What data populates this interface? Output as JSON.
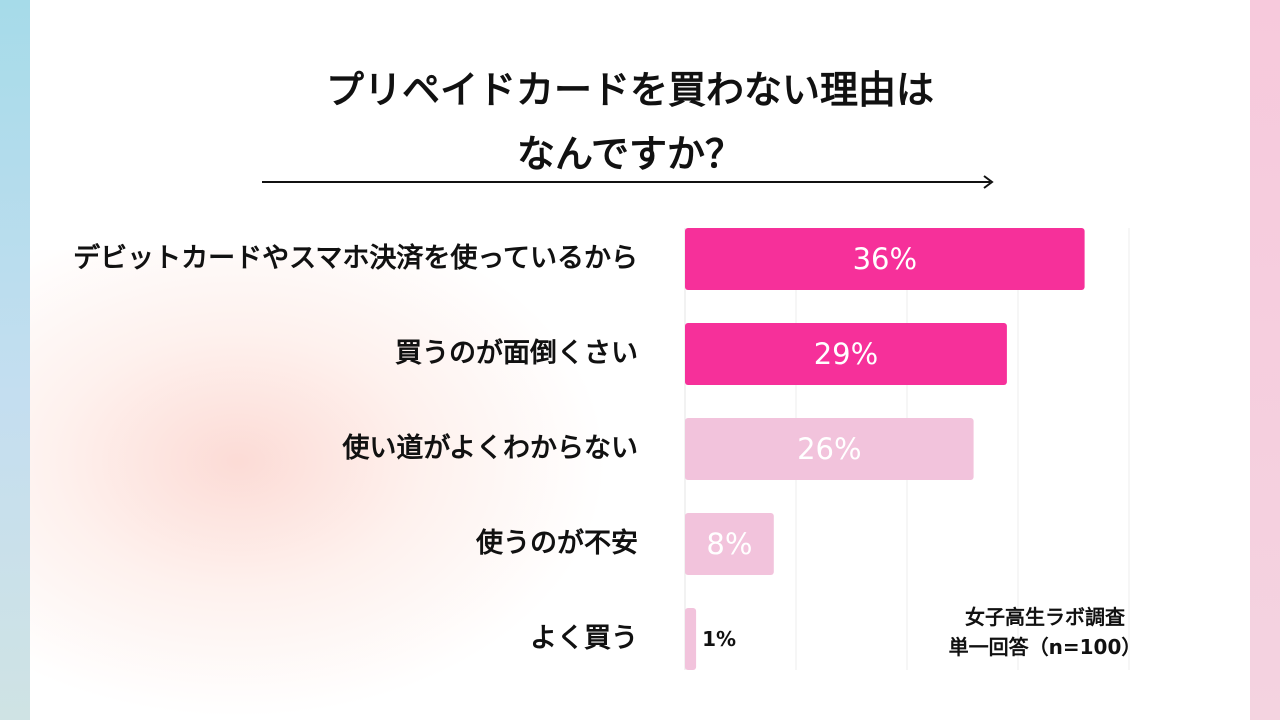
{
  "title_line1": "プリペイドカードを買わない理由は",
  "title_line2": "なんですか？",
  "source_line1": "女子高生ラボ調査",
  "source_line2": "単一回答（n=100）",
  "colors": {
    "highlight": "#f6309a",
    "muted": "#f2c3dc",
    "value_text_outside": "#111111"
  },
  "chart_data": {
    "type": "bar",
    "orientation": "horizontal",
    "title": "プリペイドカードを買わない理由はなんですか？",
    "categories": [
      "デビットカードやスマホ決済を使っているから",
      "買うのが面倒くさい",
      "使い道がよくわからない",
      "使うのが不安",
      "よく買う"
    ],
    "values": [
      36,
      29,
      26,
      8,
      1
    ],
    "value_labels": [
      "36%",
      "29%",
      "26%",
      "8%",
      "1%"
    ],
    "highlighted": [
      true,
      true,
      false,
      false,
      false
    ],
    "xlim": [
      0,
      40
    ],
    "grid": true,
    "unit": "%"
  }
}
